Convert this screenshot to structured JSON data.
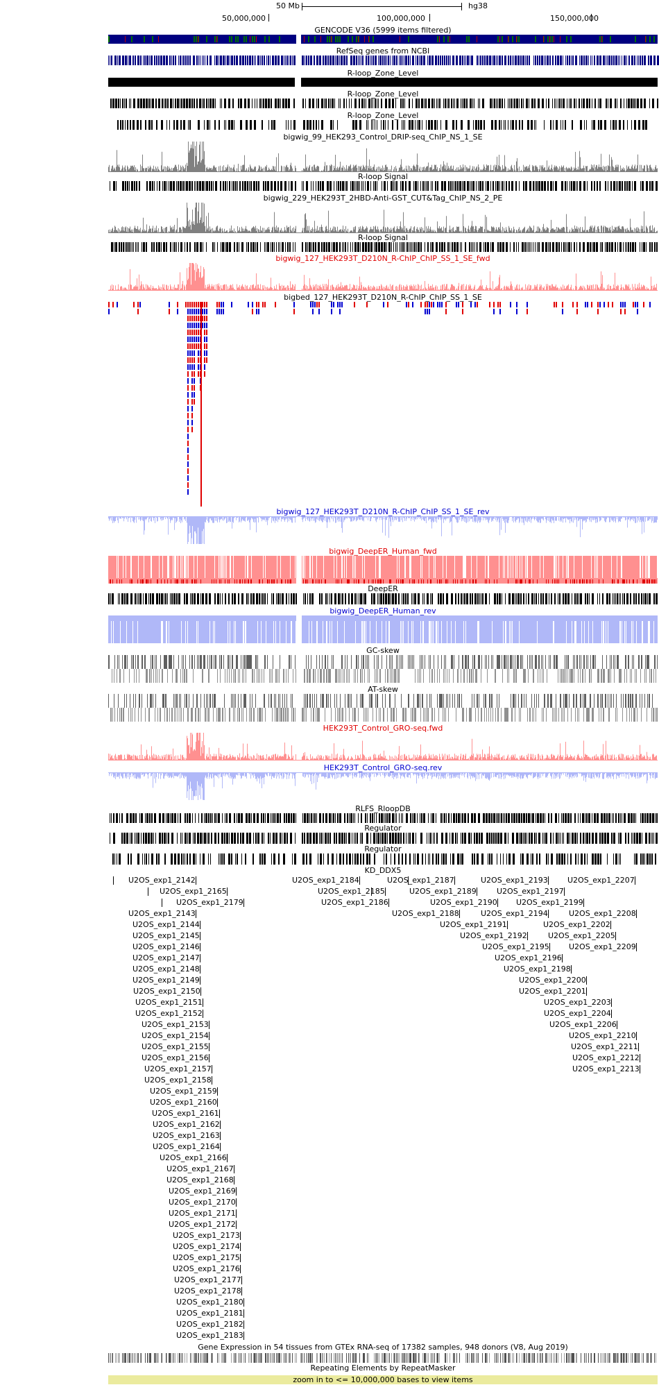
{
  "ruler": {
    "scale_label": "50 Mb",
    "assembly": "hg38",
    "positions": [
      "50,000,000",
      "100,000,000",
      "150,000,000"
    ]
  },
  "tracks": [
    {
      "label": "GENCODE V36 (5999 items filtered)",
      "kind": "gencode",
      "color": "#000000"
    },
    {
      "label": "RefSeq genes from NCBI",
      "kind": "refseq",
      "color": "#000000"
    },
    {
      "label": "R-loop_Zone_Level",
      "kind": "solid",
      "color": "#000000"
    },
    {
      "label": "R-loop_Zone_Level",
      "kind": "dense",
      "color": "#000000"
    },
    {
      "label": "R-loop_Zone_Level",
      "kind": "sparse",
      "color": "#000000"
    },
    {
      "label": "bigwig_99_HEK293_Control_DRIP-seq_ChIP_NS_1_SE",
      "kind": "wiggle",
      "color": "#000000"
    },
    {
      "label": "R-loop Signal",
      "kind": "dense",
      "color": "#000000"
    },
    {
      "label": "bigwig_229_HEK293T_2HBD-Anti-GST_CUT&Tag_ChIP_NS_2_PE",
      "kind": "wiggle",
      "color": "#000000"
    },
    {
      "label": "R-loop Signal",
      "kind": "dense",
      "color": "#000000"
    },
    {
      "label": "bigwig_127_HEK293T_D210N_R-ChIP_ChIP_SS_1_SE_fwd",
      "kind": "wiggle-red",
      "color": "#e00000"
    },
    {
      "label": "bigbed_127_HEK293T_D210N_R-ChIP_ChIP_SS_1_SE",
      "kind": "stack",
      "color": "#000000"
    },
    {
      "label": "bigwig_127_HEK293T_D210N_R-ChIP_ChIP_SS_1_SE_rev",
      "kind": "wiggle-blue",
      "color": "#0000d0"
    },
    {
      "label": "bigwig_DeepER_Human_fwd",
      "kind": "fill-red",
      "color": "#e00000"
    },
    {
      "label": "DeepER",
      "kind": "dense",
      "color": "#000000"
    },
    {
      "label": "bigwig_DeepER_Human_rev",
      "kind": "fill-blue",
      "color": "#0000d0"
    },
    {
      "label": "GC-skew",
      "kind": "skew",
      "color": "#000000"
    },
    {
      "label": "AT-skew",
      "kind": "skew",
      "color": "#000000"
    },
    {
      "label": "HEK293T_Control_GRO-seq.fwd",
      "kind": "wiggle-red",
      "color": "#e00000"
    },
    {
      "label": "HEK293T_Control_GRO-seq.rev",
      "kind": "wiggle-blue",
      "color": "#0000d0"
    },
    {
      "label": "RLFS_RloopDB",
      "kind": "dense",
      "color": "#000000"
    },
    {
      "label": "Regulator",
      "kind": "dense",
      "color": "#000000"
    },
    {
      "label": "Regulator",
      "kind": "sparse",
      "color": "#000000"
    },
    {
      "label": "KD_DDX5",
      "kind": "items",
      "color": "#000000"
    }
  ],
  "kd_items": [
    "U2OS_exp1_2142",
    "U2OS_exp1_2165",
    "U2OS_exp1_2179",
    "U2OS_exp1_2143",
    "U2OS_exp1_2144",
    "U2OS_exp1_2145",
    "U2OS_exp1_2146",
    "U2OS_exp1_2147",
    "U2OS_exp1_2148",
    "U2OS_exp1_2149",
    "U2OS_exp1_2150",
    "U2OS_exp1_2151",
    "U2OS_exp1_2152",
    "U2OS_exp1_2153",
    "U2OS_exp1_2154",
    "U2OS_exp1_2155",
    "U2OS_exp1_2156",
    "U2OS_exp1_2157",
    "U2OS_exp1_2158",
    "U2OS_exp1_2159",
    "U2OS_exp1_2160",
    "U2OS_exp1_2161",
    "U2OS_exp1_2162",
    "U2OS_exp1_2163",
    "U2OS_exp1_2164",
    "U2OS_exp1_2166",
    "U2OS_exp1_2167",
    "U2OS_exp1_2168",
    "U2OS_exp1_2169",
    "U2OS_exp1_2170",
    "U2OS_exp1_2171",
    "U2OS_exp1_2172",
    "U2OS_exp1_2173",
    "U2OS_exp1_2174",
    "U2OS_exp1_2175",
    "U2OS_exp1_2176",
    "U2OS_exp1_2177",
    "U2OS_exp1_2178",
    "U2OS_exp1_2180",
    "U2OS_exp1_2181",
    "U2OS_exp1_2182",
    "U2OS_exp1_2183",
    "U2OS_exp1_2184",
    "U2OS_exp1_2185",
    "U2OS_exp1_2186",
    "U2OS_exp1_2187",
    "U2OS_exp1_2188",
    "U2OS_exp1_2189",
    "U2OS_exp1_2190",
    "U2OS_exp1_2191",
    "U2OS_exp1_2192",
    "U2OS_exp1_2193",
    "U2OS_exp1_2194",
    "U2OS_exp1_2195",
    "U2OS_exp1_2196",
    "U2OS_exp1_2197",
    "U2OS_exp1_2198",
    "U2OS_exp1_2199",
    "U2OS_exp1_2200",
    "U2OS_exp1_2201",
    "U2OS_exp1_2202",
    "U2OS_exp1_2203",
    "U2OS_exp1_2204",
    "U2OS_exp1_2205",
    "U2OS_exp1_2206",
    "U2OS_exp1_2207",
    "U2OS_exp1_2208",
    "U2OS_exp1_2209",
    "U2OS_exp1_2210",
    "U2OS_exp1_2211",
    "U2OS_exp1_2212",
    "U2OS_exp1_2213"
  ],
  "gtex_label": "Gene Expression in 54 tissues from GTEx RNA-seq of 17382 samples, 948 donors (V8, Aug 2019)",
  "repeat_label": "Repeating Elements by RepeatMasker",
  "zoom_notice": "zoom in to <= 10,000,000 bases to view items",
  "colors": {
    "red": "#e00000",
    "pink": "#ff9090",
    "blue": "#0000d0",
    "lightblue": "#b0b8f8",
    "gray": "#808080",
    "navy": "#000080",
    "green": "#007000",
    "notice_bg": "#ebeb9e"
  }
}
